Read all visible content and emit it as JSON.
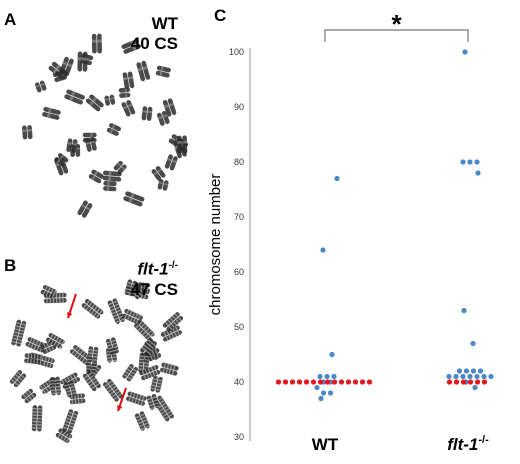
{
  "panels": {
    "a": {
      "letter": "A",
      "genotype": "WT",
      "count": "40 CS"
    },
    "b": {
      "letter": "B",
      "genotype": "flt-1",
      "superscript": "-/-",
      "count": "47 CS"
    },
    "c": {
      "letter": "C"
    }
  },
  "colors": {
    "red_points": "#e8141c",
    "blue_points": "#4a88c8",
    "chromosome_stain": "#2a2a2a",
    "arrow": "#e01010"
  },
  "chart_data": {
    "type": "scatter",
    "ylabel": "chromosome number",
    "ylim": [
      30,
      100
    ],
    "yticks": [
      "30",
      "40",
      "50",
      "60",
      "70",
      "80",
      "90",
      "100"
    ],
    "categories": [
      "WT",
      "flt-1-/-"
    ],
    "category_labels": [
      {
        "main": "WT",
        "sup": ""
      },
      {
        "main": "flt-1",
        "sup": "-/-"
      }
    ],
    "significance": "*",
    "groups": [
      {
        "category": "WT",
        "red": [
          40,
          40,
          40,
          40,
          40,
          40,
          40,
          40,
          40,
          40,
          40,
          40,
          40,
          40
        ],
        "blue": [
          37,
          38,
          38,
          39,
          40,
          40,
          41,
          41,
          41,
          45,
          64,
          77
        ]
      },
      {
        "category": "flt-1-/-",
        "red": [
          40,
          40,
          40,
          40,
          40,
          40
        ],
        "blue": [
          39,
          40,
          41,
          41,
          41,
          41,
          41,
          41,
          41,
          42,
          42,
          42,
          42,
          47,
          53,
          78,
          80,
          80,
          80,
          100
        ]
      }
    ]
  }
}
